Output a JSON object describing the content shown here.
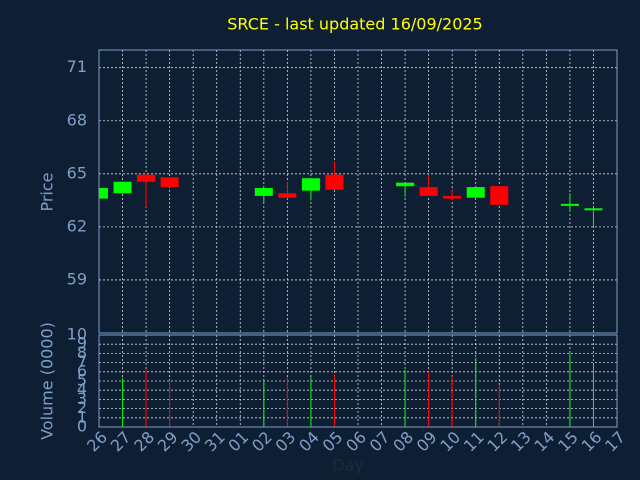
{
  "chart_data": {
    "type": "candlestick",
    "title": "SRCE - last updated 16/09/2025",
    "ylabel": "Price",
    "y2label": "Volume (0000)",
    "xlabel": "Day",
    "categories": [
      "26",
      "27",
      "28",
      "29",
      "30",
      "31",
      "01",
      "02",
      "03",
      "04",
      "05",
      "06",
      "07",
      "08",
      "09",
      "10",
      "11",
      "12",
      "13",
      "14",
      "15",
      "16",
      "17"
    ],
    "open": [
      63.6,
      63.9,
      64.95,
      64.8,
      null,
      null,
      null,
      63.75,
      63.9,
      64.05,
      64.95,
      null,
      null,
      64.3,
      64.25,
      63.75,
      63.65,
      64.3,
      null,
      null,
      63.3,
      63.0,
      null
    ],
    "high": [
      64.2,
      64.55,
      65.0,
      64.8,
      null,
      null,
      null,
      64.2,
      64.55,
      64.75,
      65.7,
      null,
      null,
      64.5,
      64.95,
      64.15,
      64.25,
      64.3,
      null,
      null,
      63.9,
      63.2,
      null
    ],
    "low": [
      63.6,
      63.9,
      63.1,
      64.25,
      null,
      null,
      null,
      63.4,
      63.6,
      63.5,
      64.1,
      null,
      null,
      63.7,
      63.75,
      63.5,
      63.65,
      63.25,
      null,
      null,
      62.85,
      62.0,
      null
    ],
    "close": [
      64.2,
      64.55,
      64.55,
      64.25,
      null,
      null,
      null,
      64.2,
      63.65,
      64.75,
      64.1,
      null,
      null,
      64.5,
      63.75,
      63.6,
      64.25,
      63.25,
      null,
      null,
      63.3,
      63.05,
      null
    ],
    "volume": [
      5.0,
      5.3,
      6.2,
      5.1,
      null,
      null,
      null,
      5.1,
      5.4,
      5.4,
      5.7,
      null,
      null,
      6.2,
      6.0,
      5.5,
      7.5,
      4.6,
      null,
      null,
      8.0,
      6.8,
      null
    ],
    "up_color": "#00ff00",
    "down_color": "#ff0000",
    "ylim": [
      56,
      72
    ],
    "yticks": [
      59,
      62,
      65,
      68,
      71
    ],
    "y2lim": [
      0,
      10
    ],
    "y2ticks": [
      0,
      1,
      2,
      3,
      4,
      5,
      6,
      7,
      8,
      9,
      10
    ],
    "grid": true
  }
}
